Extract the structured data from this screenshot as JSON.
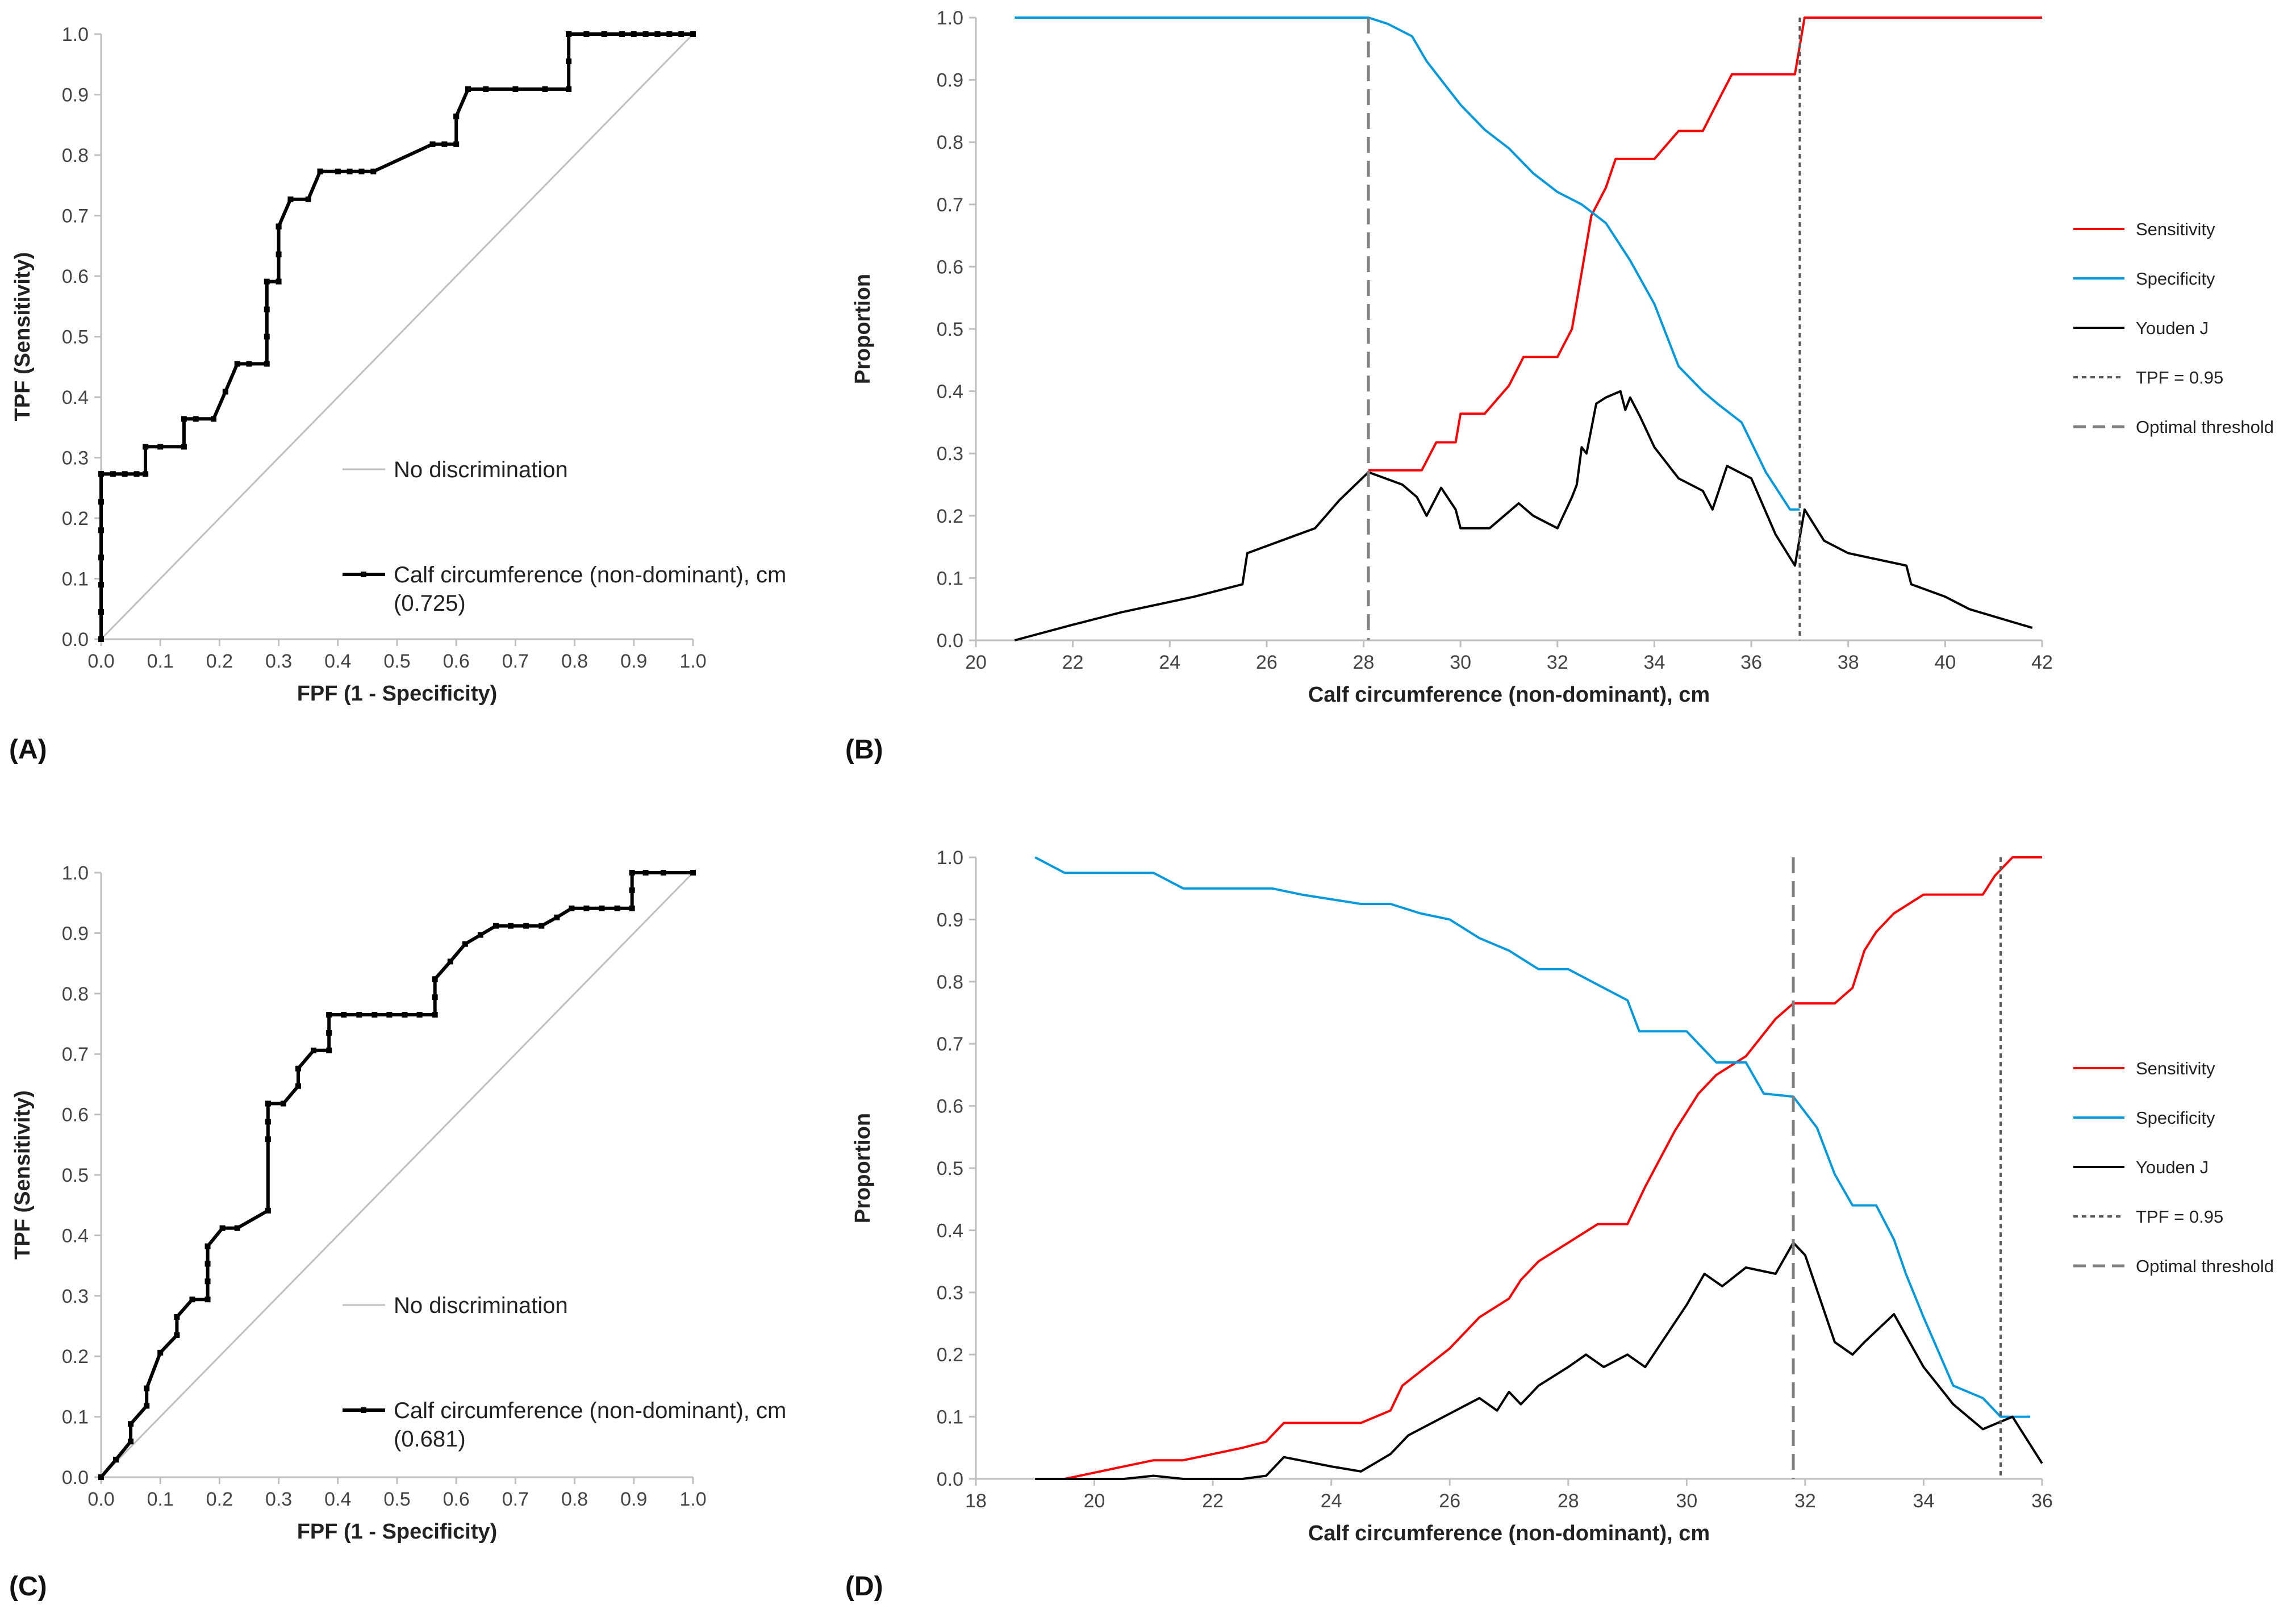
{
  "colors": {
    "roc": "#000000",
    "diagonal": "#bfbfbf",
    "sensitivity": "#ff0000",
    "specificity": "#0099dd",
    "youden": "#000000",
    "threshold": "#808080",
    "tpf": "#595959",
    "axis": "#bfbfbf"
  },
  "panels": [
    {
      "label": "(A)",
      "chart_data": {
        "type": "line",
        "subtype": "roc",
        "xlabel": "FPF (1 - Specificity)",
        "ylabel": "TPF (Sensitivity)",
        "xlim": [
          0,
          1
        ],
        "ylim": [
          0,
          1
        ],
        "xticks": [
          "0.0",
          "0.1",
          "0.2",
          "0.3",
          "0.4",
          "0.5",
          "0.6",
          "0.7",
          "0.8",
          "0.9",
          "1.0"
        ],
        "yticks": [
          "0.0",
          "0.1",
          "0.2",
          "0.3",
          "0.4",
          "0.5",
          "0.6",
          "0.7",
          "0.8",
          "0.9",
          "1.0"
        ],
        "diagonal_label": "No discrimination",
        "series_label": "Calf circumference (non-dominant), cm",
        "auc_label": "(0.725)",
        "x": [
          0,
          0,
          0,
          0,
          0,
          0,
          0,
          0,
          0,
          0,
          0.02,
          0.04,
          0.06,
          0.075,
          0.075,
          0.1,
          0.14,
          0.14,
          0.16,
          0.19,
          0.21,
          0.23,
          0.25,
          0.28,
          0.28,
          0.28,
          0.28,
          0.3,
          0.3,
          0.3,
          0.3,
          0.32,
          0.35,
          0.37,
          0.37,
          0.4,
          0.42,
          0.44,
          0.46,
          0.56,
          0.58,
          0.6,
          0.6,
          0.6,
          0.62,
          0.62,
          0.65,
          0.7,
          0.75,
          0.79,
          0.79,
          0.79,
          0.79,
          0.82,
          0.85,
          0.88,
          0.9,
          0.92,
          0.94,
          0.96,
          0.98,
          1.0
        ],
        "y": [
          0,
          0.045,
          0.09,
          0.135,
          0.18,
          0.227,
          0.273,
          0.273,
          0.273,
          0.273,
          0.273,
          0.273,
          0.273,
          0.273,
          0.318,
          0.318,
          0.318,
          0.364,
          0.364,
          0.364,
          0.409,
          0.455,
          0.455,
          0.455,
          0.5,
          0.545,
          0.591,
          0.591,
          0.636,
          0.682,
          0.682,
          0.727,
          0.727,
          0.773,
          0.773,
          0.773,
          0.773,
          0.773,
          0.773,
          0.818,
          0.818,
          0.818,
          0.864,
          0.864,
          0.909,
          0.909,
          0.909,
          0.909,
          0.909,
          0.909,
          0.955,
          1.0,
          1.0,
          1.0,
          1.0,
          1.0,
          1.0,
          1.0,
          1.0,
          1.0,
          1.0,
          1.0
        ]
      }
    },
    {
      "label": "(B)",
      "chart_data": {
        "type": "line",
        "xlabel": "Calf circumference (non-dominant), cm",
        "ylabel": "Proportion",
        "xlim": [
          20,
          42
        ],
        "ylim": [
          0,
          1
        ],
        "xticks": [
          "20",
          "22",
          "24",
          "26",
          "28",
          "30",
          "32",
          "34",
          "36",
          "38",
          "40",
          "42"
        ],
        "yticks": [
          "0.0",
          "0.1",
          "0.2",
          "0.3",
          "0.4",
          "0.5",
          "0.6",
          "0.7",
          "0.8",
          "0.9",
          "1.0"
        ],
        "legend": [
          "Sensitivity",
          "Specificity",
          "Youden J",
          "TPF = 0.95",
          "Optimal threshold"
        ],
        "optimal_threshold_x": 28.1,
        "tpf_x": 37.0,
        "series": [
          {
            "name": "Sensitivity",
            "x": [
              28.1,
              29.2,
              29.5,
              29.9,
              30,
              30.5,
              31,
              31.3,
              32,
              32.3,
              32.5,
              32.7,
              33,
              33.2,
              33.5,
              33.8,
              34,
              34.5,
              35,
              35.3,
              35.6,
              36,
              36.5,
              36.9,
              37.1,
              38,
              40,
              42
            ],
            "values": [
              0.273,
              0.273,
              0.318,
              0.318,
              0.364,
              0.364,
              0.409,
              0.455,
              0.455,
              0.5,
              0.591,
              0.682,
              0.727,
              0.773,
              0.773,
              0.773,
              0.773,
              0.818,
              0.818,
              0.864,
              0.909,
              0.909,
              0.909,
              0.909,
              1.0,
              1.0,
              1.0,
              1.0
            ]
          },
          {
            "name": "Specificity",
            "x": [
              20.8,
              28.1,
              28.5,
              29,
              29.3,
              29.6,
              30,
              30.5,
              31,
              31.5,
              32,
              32.5,
              33,
              33.5,
              34,
              34.5,
              35,
              35.3,
              35.8,
              36.3,
              36.8,
              37
            ],
            "values": [
              1.0,
              1.0,
              0.99,
              0.97,
              0.93,
              0.9,
              0.86,
              0.82,
              0.79,
              0.75,
              0.72,
              0.7,
              0.67,
              0.61,
              0.54,
              0.44,
              0.4,
              0.38,
              0.35,
              0.27,
              0.21,
              0.21
            ]
          },
          {
            "name": "Youden J",
            "x": [
              20.8,
              22,
              23,
              24.5,
              25.5,
              25.6,
              27,
              27.5,
              28.1,
              28.8,
              29.1,
              29.3,
              29.6,
              29.9,
              30,
              30.6,
              31.2,
              31.5,
              32,
              32.3,
              32.4,
              32.5,
              32.6,
              32.8,
              33,
              33.3,
              33.4,
              33.5,
              33.7,
              34,
              34.5,
              35,
              35.2,
              35.5,
              36,
              36.5,
              36.9,
              37.1,
              37.5,
              38,
              39.2,
              39.3,
              40,
              40.5,
              41.8
            ],
            "values": [
              0,
              0.025,
              0.045,
              0.07,
              0.09,
              0.14,
              0.18,
              0.225,
              0.27,
              0.25,
              0.23,
              0.2,
              0.245,
              0.21,
              0.18,
              0.18,
              0.22,
              0.2,
              0.18,
              0.23,
              0.25,
              0.31,
              0.3,
              0.38,
              0.39,
              0.4,
              0.37,
              0.39,
              0.36,
              0.31,
              0.26,
              0.24,
              0.21,
              0.28,
              0.26,
              0.17,
              0.12,
              0.21,
              0.16,
              0.14,
              0.12,
              0.09,
              0.07,
              0.05,
              0.02
            ]
          }
        ]
      }
    },
    {
      "label": "(C)",
      "chart_data": {
        "type": "line",
        "subtype": "roc",
        "xlabel": "FPF (1 - Specificity)",
        "ylabel": "TPF (Sensitivity)",
        "xlim": [
          0,
          1
        ],
        "ylim": [
          0,
          1
        ],
        "xticks": [
          "0.0",
          "0.1",
          "0.2",
          "0.3",
          "0.4",
          "0.5",
          "0.6",
          "0.7",
          "0.8",
          "0.9",
          "1.0"
        ],
        "yticks": [
          "0.0",
          "0.1",
          "0.2",
          "0.3",
          "0.4",
          "0.5",
          "0.6",
          "0.7",
          "0.8",
          "0.9",
          "1.0"
        ],
        "diagonal_label": "No discrimination",
        "series_label": "Calf circumference (non-dominant), cm",
        "auc_label": "(0.681)",
        "x": [
          0,
          0.025,
          0.025,
          0.05,
          0.05,
          0.05,
          0.077,
          0.077,
          0.1,
          0.128,
          0.128,
          0.154,
          0.18,
          0.18,
          0.18,
          0.18,
          0.205,
          0.23,
          0.282,
          0.282,
          0.282,
          0.282,
          0.282,
          0.308,
          0.333,
          0.333,
          0.359,
          0.385,
          0.385,
          0.385,
          0.41,
          0.436,
          0.462,
          0.487,
          0.513,
          0.538,
          0.564,
          0.564,
          0.564,
          0.59,
          0.615,
          0.641,
          0.667,
          0.692,
          0.718,
          0.744,
          0.77,
          0.795,
          0.82,
          0.846,
          0.872,
          0.897,
          0.897,
          0.897,
          0.92,
          0.95,
          1.0
        ],
        "y": [
          0,
          0.029,
          0.029,
          0.059,
          0.088,
          0.088,
          0.118,
          0.147,
          0.206,
          0.235,
          0.265,
          0.294,
          0.294,
          0.324,
          0.353,
          0.382,
          0.412,
          0.412,
          0.441,
          0.559,
          0.588,
          0.618,
          0.618,
          0.618,
          0.647,
          0.676,
          0.706,
          0.706,
          0.735,
          0.765,
          0.765,
          0.765,
          0.765,
          0.765,
          0.765,
          0.765,
          0.765,
          0.794,
          0.824,
          0.853,
          0.882,
          0.897,
          0.912,
          0.912,
          0.912,
          0.912,
          0.926,
          0.941,
          0.941,
          0.941,
          0.941,
          0.941,
          0.971,
          1.0,
          1.0,
          1.0,
          1.0
        ]
      }
    },
    {
      "label": "(D)",
      "chart_data": {
        "type": "line",
        "xlabel": "Calf circumference (non-dominant), cm",
        "ylabel": "Proportion",
        "xlim": [
          18,
          36
        ],
        "ylim": [
          0,
          1
        ],
        "xticks": [
          "18",
          "20",
          "22",
          "24",
          "26",
          "28",
          "30",
          "32",
          "34",
          "36"
        ],
        "yticks": [
          "0.0",
          "0.1",
          "0.2",
          "0.3",
          "0.4",
          "0.5",
          "0.6",
          "0.7",
          "0.8",
          "0.9",
          "1.0"
        ],
        "legend": [
          "Sensitivity",
          "Specificity",
          "Youden J",
          "TPF = 0.95",
          "Optimal threshold"
        ],
        "optimal_threshold_x": 31.8,
        "tpf_x": 35.3,
        "series": [
          {
            "name": "Sensitivity",
            "x": [
              19,
              19.5,
              20.5,
              21,
              21.5,
              22.5,
              22.9,
              23.2,
              24,
              24.5,
              25,
              25.2,
              26,
              26.5,
              27,
              27.2,
              27.5,
              28,
              28.5,
              29,
              29.3,
              29.8,
              30.2,
              30.5,
              31,
              31.5,
              31.8,
              32.5,
              32.8,
              33,
              33.2,
              33.5,
              34,
              34.5,
              35,
              35.2,
              35.5,
              36
            ],
            "values": [
              0,
              0,
              0.02,
              0.03,
              0.03,
              0.05,
              0.06,
              0.09,
              0.09,
              0.09,
              0.11,
              0.15,
              0.21,
              0.26,
              0.29,
              0.32,
              0.35,
              0.38,
              0.41,
              0.41,
              0.47,
              0.56,
              0.62,
              0.65,
              0.68,
              0.74,
              0.765,
              0.765,
              0.79,
              0.85,
              0.88,
              0.91,
              0.94,
              0.94,
              0.94,
              0.97,
              1.0,
              1.0
            ]
          },
          {
            "name": "Specificity",
            "x": [
              19,
              19.5,
              21,
              21.5,
              23,
              23.5,
              24.5,
              25,
              25.5,
              26,
              26.5,
              27,
              27.5,
              28,
              28.5,
              29,
              29.2,
              29.5,
              30,
              30.5,
              31,
              31.3,
              31.8,
              32.2,
              32.5,
              32.8,
              33.2,
              33.5,
              33.7,
              34,
              34.5,
              35,
              35.3,
              35.8
            ],
            "values": [
              1.0,
              0.975,
              0.975,
              0.95,
              0.95,
              0.94,
              0.925,
              0.925,
              0.91,
              0.9,
              0.87,
              0.85,
              0.82,
              0.82,
              0.795,
              0.77,
              0.72,
              0.72,
              0.72,
              0.67,
              0.67,
              0.62,
              0.615,
              0.565,
              0.49,
              0.44,
              0.44,
              0.385,
              0.33,
              0.26,
              0.15,
              0.13,
              0.1,
              0.1
            ]
          },
          {
            "name": "Youden J",
            "x": [
              19,
              20.5,
              21,
              21.5,
              22.5,
              22.9,
              23.2,
              24,
              24.5,
              25,
              25.3,
              26,
              26.5,
              26.8,
              27,
              27.2,
              27.5,
              28,
              28.3,
              28.6,
              29,
              29.3,
              30,
              30.3,
              30.6,
              31,
              31.5,
              31.8,
              32,
              32.5,
              32.8,
              33,
              33.5,
              34,
              34.5,
              35,
              35.5,
              36
            ],
            "values": [
              0,
              0,
              0.005,
              0,
              0,
              0.005,
              0.035,
              0.02,
              0.012,
              0.04,
              0.07,
              0.105,
              0.13,
              0.11,
              0.14,
              0.12,
              0.15,
              0.18,
              0.2,
              0.18,
              0.2,
              0.18,
              0.28,
              0.33,
              0.31,
              0.34,
              0.33,
              0.38,
              0.36,
              0.22,
              0.2,
              0.22,
              0.265,
              0.18,
              0.12,
              0.08,
              0.1,
              0.025
            ]
          }
        ]
      }
    }
  ]
}
